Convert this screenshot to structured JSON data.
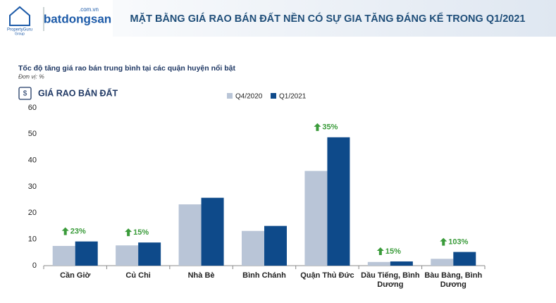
{
  "header": {
    "brand_left": "PropertyGuru",
    "brand_left_sub": "Group",
    "brand_right": "batdongsan",
    "brand_right_sub": ".com.vn"
  },
  "chart_data": {
    "type": "bar",
    "title": "MẶT BẰNG GIÁ RAO BÁN ĐẤT NỀN CÓ SỰ GIA TĂNG ĐÁNG KỂ TRONG Q1/2021",
    "subtitle": "Tốc độ tăng giá rao bán trung bình tại các quận huyện nổi bật",
    "unit_note": "Đơn vị: %",
    "panel_label": "GIÁ RAO BÁN ĐẤT",
    "categories": [
      "Cần Giờ",
      "Củ Chi",
      "Nhà Bè",
      "Bình Chánh",
      "Quận Thủ Đức",
      "Dầu Tiếng, Bình Dương",
      "Bàu Bàng, Bình Dương"
    ],
    "series": [
      {
        "name": "Q4/2020",
        "color": "#b9c5d7",
        "values": [
          7.5,
          7.7,
          23.3,
          13.2,
          36,
          1.4,
          2.6
        ]
      },
      {
        "name": "Q1/2021",
        "color": "#0e4a8a",
        "values": [
          9.2,
          8.8,
          25.8,
          15.1,
          48.8,
          1.6,
          5.2
        ]
      }
    ],
    "growth_labels": [
      "23%",
      "15%",
      null,
      null,
      "35%",
      "15%",
      "103%"
    ],
    "growth_color": "#3a9b3a",
    "ylim": [
      0,
      60
    ],
    "yticks": [
      0,
      10,
      20,
      30,
      40,
      50,
      60
    ],
    "grid": false,
    "legend": "top"
  }
}
